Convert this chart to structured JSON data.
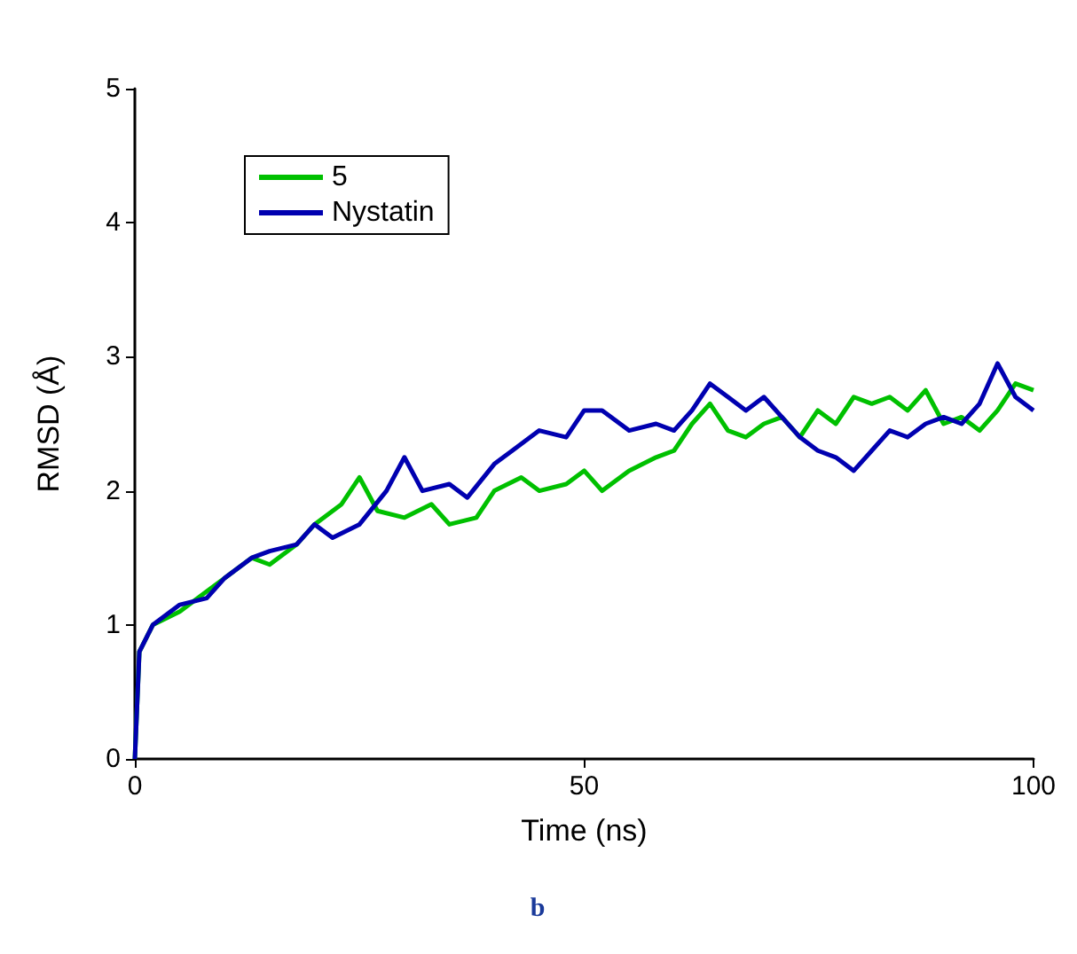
{
  "chart_data": {
    "type": "line",
    "xlabel": "Time (ns)",
    "ylabel": "RMSD (Å)",
    "xlim": [
      0,
      100
    ],
    "xticks": [
      0,
      50,
      100
    ],
    "ylim": [
      0,
      5
    ],
    "yticks": [
      0,
      1,
      2,
      3,
      4,
      5
    ],
    "grid": false,
    "legend": "top left",
    "marker": "none",
    "line_style": "solid",
    "annotations": [
      "b"
    ],
    "series": [
      {
        "name": "5",
        "color": "#00c000",
        "x": [
          0,
          0.5,
          2,
          5,
          8,
          10,
          13,
          15,
          18,
          20,
          23,
          25,
          27,
          30,
          33,
          35,
          38,
          40,
          43,
          45,
          48,
          50,
          52,
          55,
          58,
          60,
          62,
          64,
          66,
          68,
          70,
          72,
          74,
          76,
          78,
          80,
          82,
          84,
          86,
          88,
          90,
          92,
          94,
          96,
          98,
          100
        ],
        "values": [
          0,
          0.8,
          1.0,
          1.1,
          1.25,
          1.35,
          1.5,
          1.45,
          1.6,
          1.75,
          1.9,
          2.1,
          1.85,
          1.8,
          1.9,
          1.75,
          1.8,
          2.0,
          2.1,
          2.0,
          2.05,
          2.15,
          2.0,
          2.15,
          2.25,
          2.3,
          2.5,
          2.65,
          2.45,
          2.4,
          2.5,
          2.55,
          2.4,
          2.6,
          2.5,
          2.7,
          2.65,
          2.7,
          2.6,
          2.75,
          2.5,
          2.55,
          2.45,
          2.6,
          2.8,
          2.75
        ]
      },
      {
        "name": "Nystatin",
        "color": "#0000b0",
        "x": [
          0,
          0.5,
          2,
          5,
          8,
          10,
          13,
          15,
          18,
          20,
          22,
          25,
          28,
          30,
          32,
          35,
          37,
          40,
          42,
          45,
          48,
          50,
          52,
          55,
          58,
          60,
          62,
          64,
          66,
          68,
          70,
          72,
          74,
          76,
          78,
          80,
          82,
          84,
          86,
          88,
          90,
          92,
          94,
          96,
          98,
          100
        ],
        "values": [
          0,
          0.8,
          1.0,
          1.15,
          1.2,
          1.35,
          1.5,
          1.55,
          1.6,
          1.75,
          1.65,
          1.75,
          2.0,
          2.25,
          2.0,
          2.05,
          1.95,
          2.2,
          2.3,
          2.45,
          2.4,
          2.6,
          2.6,
          2.45,
          2.5,
          2.45,
          2.6,
          2.8,
          2.7,
          2.6,
          2.7,
          2.55,
          2.4,
          2.3,
          2.25,
          2.15,
          2.3,
          2.45,
          2.4,
          2.5,
          2.55,
          2.5,
          2.65,
          2.95,
          2.7,
          2.6
        ]
      }
    ]
  }
}
